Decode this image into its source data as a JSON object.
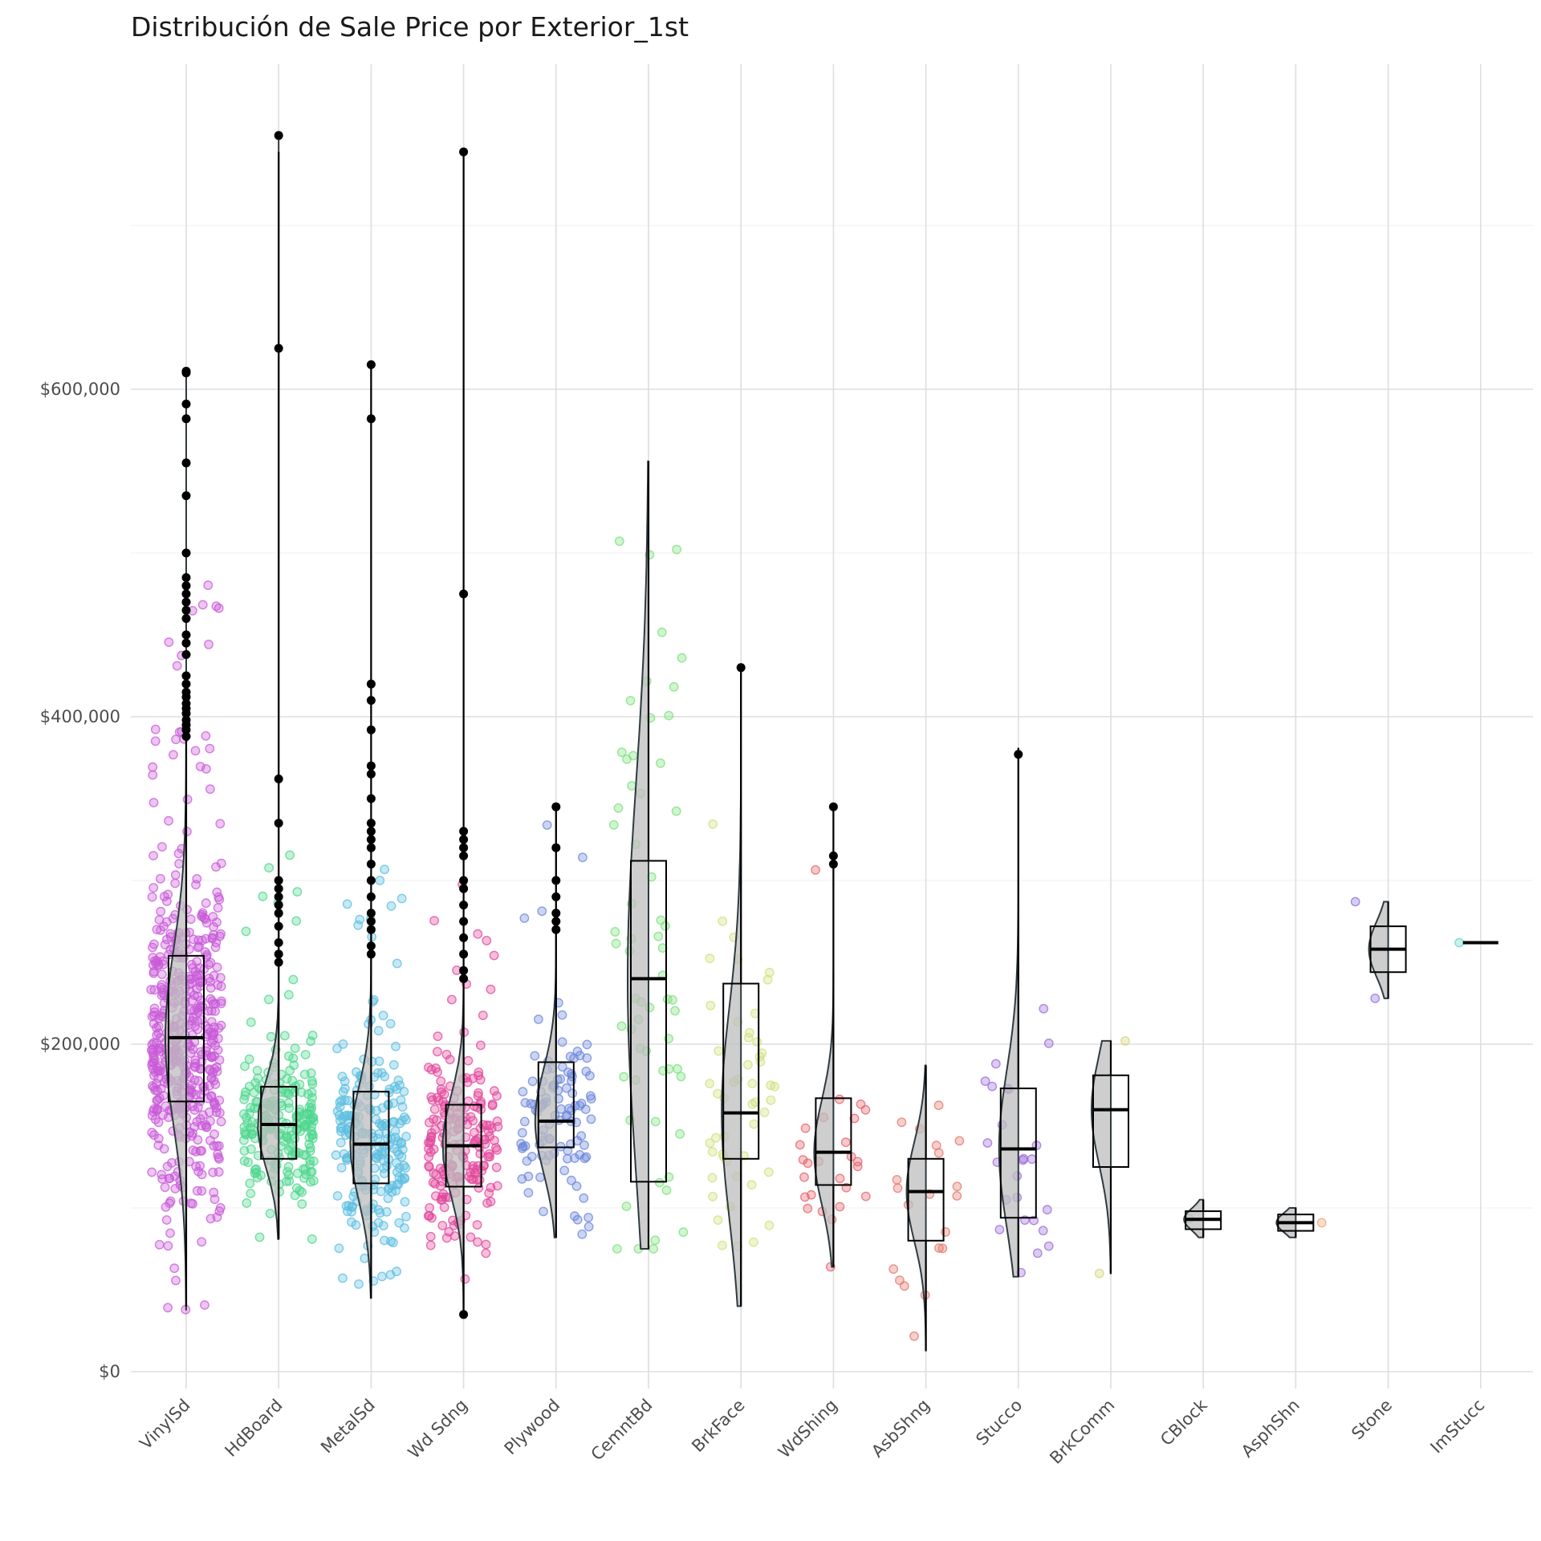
{
  "chart_data": {
    "type": "box",
    "title": "Distribución de Sale Price por Exterior_1st",
    "xlabel": "",
    "ylabel": "",
    "ylim": [
      -10000,
      795000
    ],
    "y_ticks": [
      0,
      200000,
      400000,
      600000
    ],
    "y_tick_labels": [
      "$0",
      "$200,000",
      "$400,000",
      "$600,000"
    ],
    "grid": true,
    "legend": "none",
    "overlays": [
      "jittered points",
      "half violin",
      "outliers"
    ],
    "categories": [
      "VinylSd",
      "HdBoard",
      "MetalSd",
      "Wd Sdng",
      "Plywood",
      "CemntBd",
      "BrkFace",
      "WdShing",
      "AsbShng",
      "Stucco",
      "BrkComm",
      "CBlock",
      "AsphShn",
      "Stone",
      "ImStucc"
    ],
    "series": [
      {
        "category": "VinylSd",
        "color": "#c85ad8",
        "n": 515,
        "min": 40000,
        "q1": 165000,
        "median": 204000,
        "q3": 254000,
        "max": 388000,
        "violin_min": 37900,
        "violin_max": 611000,
        "outliers": [
          388000,
          392000,
          395000,
          398000,
          402000,
          405000,
          408000,
          412000,
          415000,
          420000,
          425000,
          438000,
          445000,
          450000,
          460000,
          465000,
          470000,
          475000,
          480000,
          485000,
          500000,
          535000,
          555000,
          582000,
          591000,
          610000,
          611000
        ]
      },
      {
        "category": "HdBoard",
        "color": "#4fd68e",
        "n": 222,
        "min": 81000,
        "q1": 130000,
        "median": 151000,
        "q3": 174000,
        "max": 745000,
        "violin_min": 81000,
        "violin_max": 755000,
        "outliers": [
          250000,
          255000,
          262000,
          272000,
          280000,
          285000,
          290000,
          295000,
          300000,
          335000,
          362000,
          625000,
          755000
        ]
      },
      {
        "category": "MetalSd",
        "color": "#5bbde0",
        "n": 220,
        "min": 45000,
        "q1": 115000,
        "median": 139000,
        "q3": 171000,
        "max": 615000,
        "violin_min": 45000,
        "violin_max": 615000,
        "outliers": [
          255000,
          260000,
          270000,
          275000,
          280000,
          290000,
          300000,
          310000,
          320000,
          325000,
          330000,
          335000,
          350000,
          365000,
          370000,
          392000,
          410000,
          420000,
          582000,
          615000
        ]
      },
      {
        "category": "Wd Sdng",
        "color": "#e2479b",
        "n": 206,
        "min": 35000,
        "q1": 113000,
        "median": 138000,
        "q3": 163000,
        "max": 745000,
        "violin_min": 34900,
        "violin_max": 745000,
        "outliers": [
          34900,
          240000,
          245000,
          255000,
          265000,
          275000,
          285000,
          295000,
          300000,
          315000,
          320000,
          325000,
          330000,
          475000,
          745000
        ]
      },
      {
        "category": "Plywood",
        "color": "#6b86db",
        "n": 108,
        "min": 82000,
        "q1": 137000,
        "median": 153000,
        "q3": 189000,
        "max": 345000,
        "violin_min": 82000,
        "violin_max": 345000,
        "outliers": [
          270000,
          275000,
          280000,
          290000,
          300000,
          320000,
          345000
        ]
      },
      {
        "category": "CemntBd",
        "color": "#7be07b",
        "n": 61,
        "min": 75000,
        "q1": 116000,
        "median": 240000,
        "q3": 312000,
        "max": 556000,
        "violin_min": 75000,
        "violin_max": 556000,
        "outliers": []
      },
      {
        "category": "BrkFace",
        "color": "#cfe07a",
        "n": 50,
        "min": 40000,
        "q1": 130000,
        "median": 158000,
        "q3": 237000,
        "max": 430000,
        "violin_min": 40000,
        "violin_max": 430000,
        "outliers": [
          430000
        ]
      },
      {
        "category": "WdShing",
        "color": "#e6606a",
        "n": 26,
        "min": 64000,
        "q1": 114000,
        "median": 134000,
        "q3": 167000,
        "max": 345000,
        "violin_min": 64000,
        "violin_max": 345000,
        "outliers": [
          310000,
          315000,
          345000
        ]
      },
      {
        "category": "AsbShng",
        "color": "#e3756b",
        "n": 20,
        "min": 12789,
        "q1": 80000,
        "median": 110000,
        "q3": 130000,
        "max": 187000,
        "violin_min": 12789,
        "violin_max": 187000,
        "outliers": []
      },
      {
        "category": "Stucco",
        "color": "#9b69d9",
        "n": 25,
        "min": 58000,
        "q1": 94000,
        "median": 136000,
        "q3": 173000,
        "max": 381000,
        "violin_min": 58000,
        "violin_max": 381000,
        "outliers": [
          377000
        ]
      },
      {
        "category": "BrkComm",
        "color": "#d4d47a",
        "n": 2,
        "min": 60000,
        "q1": 125000,
        "median": 160000,
        "q3": 181000,
        "max": 202000,
        "violin_min": 60000,
        "violin_max": 202000,
        "outliers": []
      },
      {
        "category": "CBlock",
        "color": "#6fd68c",
        "n": 1,
        "min": 82000,
        "q1": 87000,
        "median": 93000,
        "q3": 98000,
        "max": 105000,
        "violin_min": 82000,
        "violin_max": 105000,
        "outliers": []
      },
      {
        "category": "AsphShn",
        "color": "#f0a070",
        "n": 1,
        "min": 82000,
        "q1": 86000,
        "median": 91000,
        "q3": 96000,
        "max": 100000,
        "violin_min": 82000,
        "violin_max": 100000,
        "outliers": []
      },
      {
        "category": "Stone",
        "color": "#8a6fd6",
        "n": 2,
        "min": 228000,
        "q1": 244000,
        "median": 258000,
        "q3": 272000,
        "max": 287000,
        "violin_min": 228000,
        "violin_max": 287000,
        "outliers": []
      },
      {
        "category": "ImStucc",
        "color": "#5dd6c8",
        "n": 1,
        "min": 262000,
        "q1": 262000,
        "median": 262000,
        "q3": 262000,
        "max": 262000,
        "violin_min": 262000,
        "violin_max": 262000,
        "outliers": []
      }
    ]
  }
}
